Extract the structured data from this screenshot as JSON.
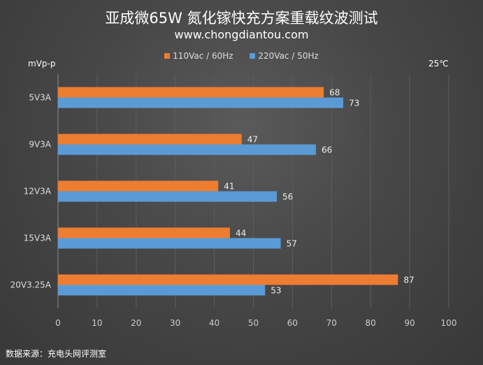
{
  "header": {
    "title": "亚成微65W 氮化镓快充方案重载纹波测试",
    "subtitle": "www.chongdiantou.com"
  },
  "unit_label": "mVp-p",
  "temperature": "25℃",
  "source": "数据来源：充电头网评测室",
  "colors": {
    "series_110": "#ed7d31",
    "series_220": "#5b9bd5"
  },
  "chart_data": {
    "type": "bar",
    "orientation": "horizontal",
    "categories": [
      "5V3A",
      "9V3A",
      "12V3A",
      "15V3A",
      "20V3.25A"
    ],
    "series": [
      {
        "name": "110Vac / 60Hz",
        "values": [
          68,
          47,
          41,
          44,
          87
        ]
      },
      {
        "name": "220Vac / 50Hz",
        "values": [
          73,
          66,
          56,
          57,
          53
        ]
      }
    ],
    "x_ticks": [
      "0",
      "10",
      "20",
      "30",
      "40",
      "50",
      "60",
      "70",
      "80",
      "90",
      "100"
    ],
    "xlim": [
      0,
      100
    ],
    "grid": true,
    "legend_position": "top"
  }
}
